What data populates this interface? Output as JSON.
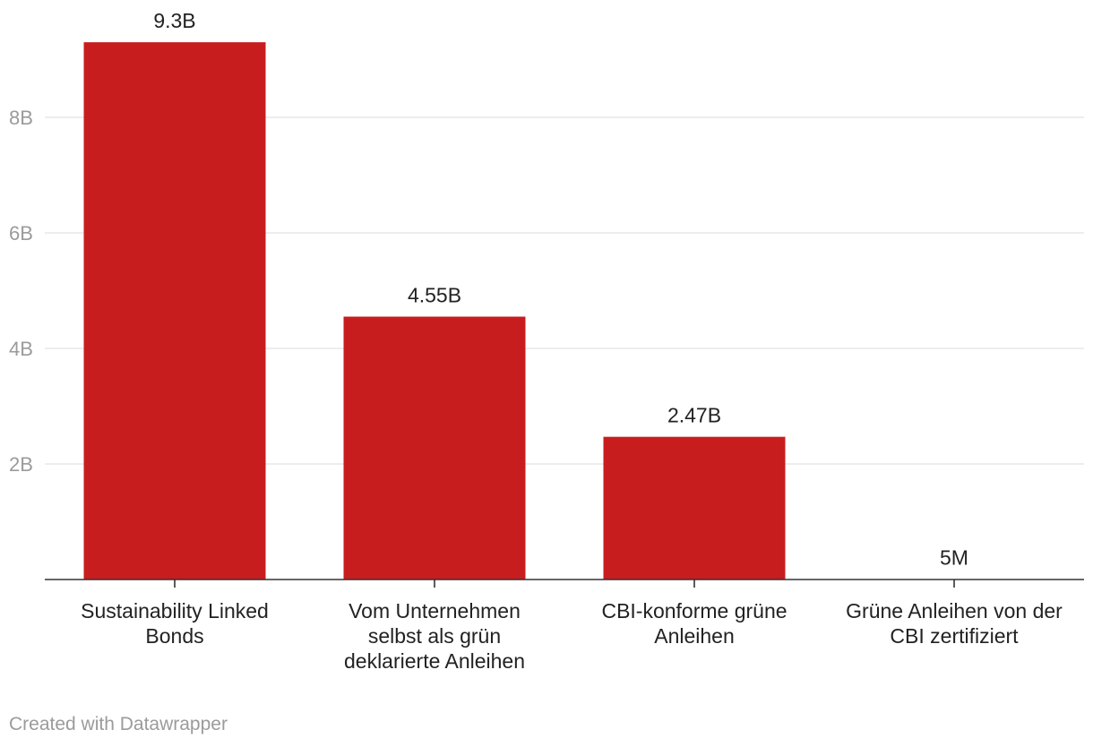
{
  "chart_data": {
    "type": "bar",
    "categories": [
      "Sustainability Linked Bonds",
      "Vom Unternehmen selbst als grün deklarierte Anleihen",
      "CBI-konforme grüne Anleihen",
      "Grüne Anleihen von der CBI zertifiziert"
    ],
    "category_lines": [
      [
        "Sustainability Linked",
        "Bonds"
      ],
      [
        "Vom Unternehmen",
        "selbst als grün",
        "deklarierte Anleihen"
      ],
      [
        "CBI-konforme grüne",
        "Anleihen"
      ],
      [
        "Grüne Anleihen von der",
        "CBI zertifiziert"
      ]
    ],
    "values": [
      9300000000,
      4550000000,
      2470000000,
      5000000
    ],
    "value_labels": [
      "9.3B",
      "4.55B",
      "2.47B",
      "5M"
    ],
    "ylim": [
      0,
      10000000000
    ],
    "y_ticks": [
      2000000000,
      4000000000,
      6000000000,
      8000000000
    ],
    "y_tick_labels": [
      "2B",
      "4B",
      "6B",
      "8B"
    ],
    "bar_color": "#c81d1e",
    "grid": true,
    "title": "",
    "xlabel": "",
    "ylabel": ""
  },
  "footer": {
    "credit": "Created with Datawrapper"
  }
}
